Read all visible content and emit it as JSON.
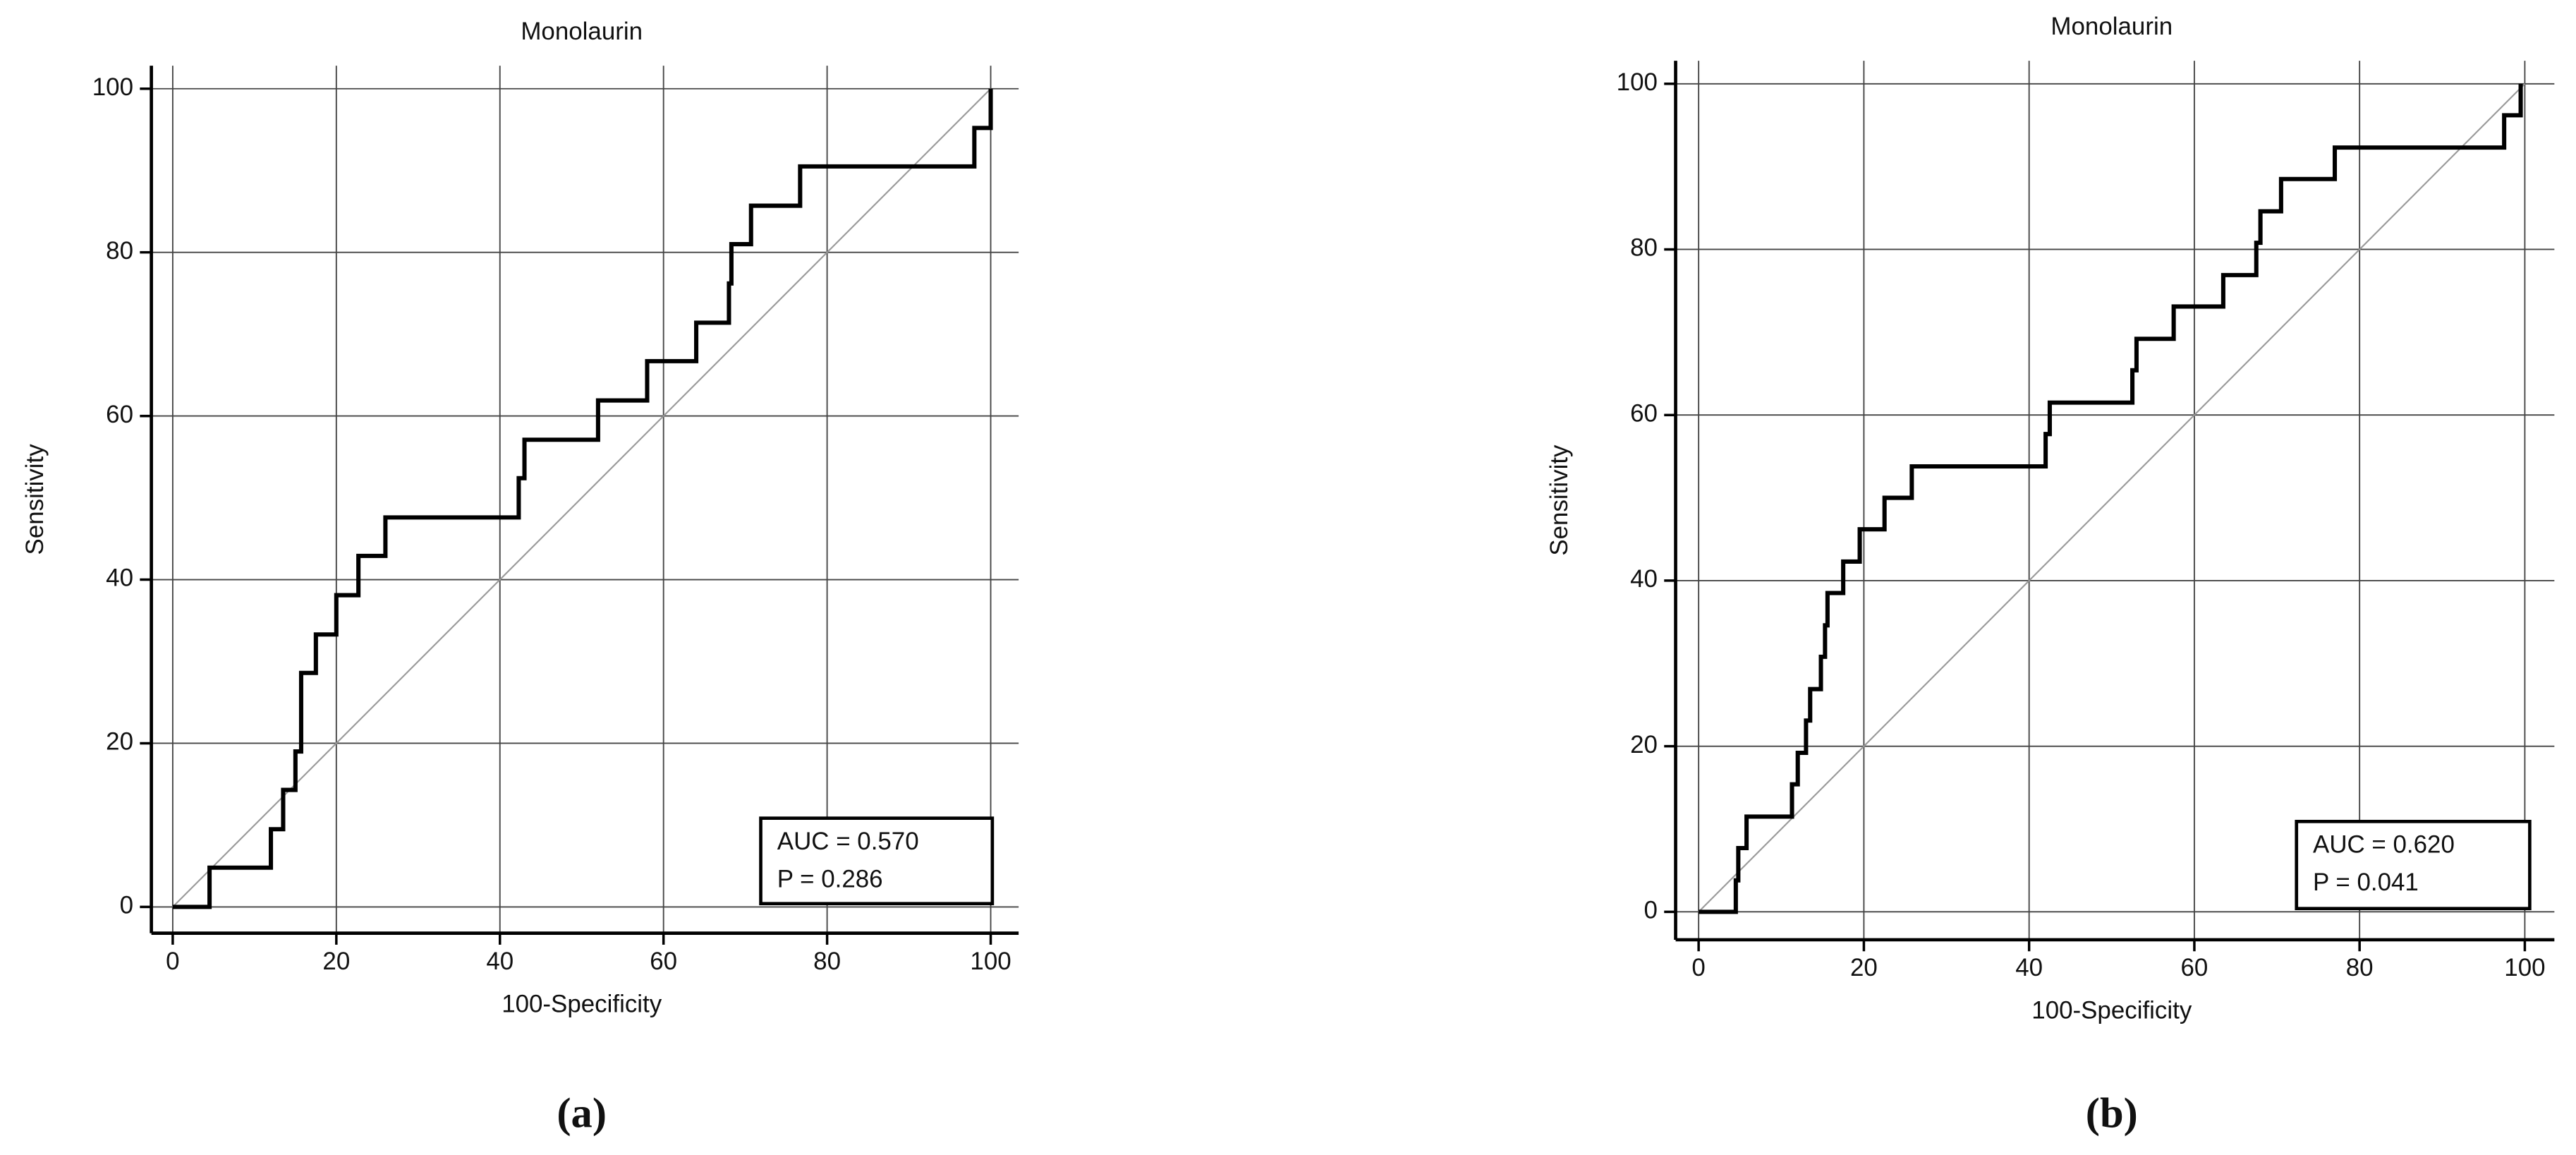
{
  "chart_data": [
    {
      "type": "line",
      "title": "Monolaurin",
      "x_label": "100-Specificity",
      "y_label": "Sensitivity",
      "panel_label": "(a)",
      "annotations": [
        "AUC = 0.570",
        "P = 0.286"
      ],
      "xlim": [
        0,
        100
      ],
      "ylim": [
        0,
        100
      ],
      "xticks": [
        0,
        20,
        40,
        60,
        80,
        100
      ],
      "yticks": [
        0,
        20,
        40,
        60,
        80,
        100
      ],
      "grid": true,
      "series": [
        {
          "color": "#000000",
          "x": [
            0,
            4.5,
            4.5,
            12,
            12,
            13.5,
            13.5,
            15,
            15,
            15.7,
            15.7,
            17.5,
            17.5,
            20,
            20,
            22.7,
            22.7,
            26,
            26,
            42.3,
            42.3,
            43,
            43,
            52,
            52,
            58,
            58,
            64,
            64,
            68,
            68,
            68.3,
            68.3,
            70.7,
            70.7,
            76.7,
            76.7,
            98,
            98,
            100,
            100
          ],
          "values": [
            0,
            0,
            4.8,
            4.8,
            9.5,
            9.5,
            14.3,
            14.3,
            19,
            19,
            28.6,
            28.6,
            33.3,
            33.3,
            38.1,
            38.1,
            42.9,
            42.9,
            47.6,
            47.6,
            52.4,
            52.4,
            57.1,
            57.1,
            61.9,
            61.9,
            66.7,
            66.7,
            71.4,
            71.4,
            76.2,
            76.2,
            81,
            81,
            85.7,
            85.7,
            90.5,
            90.5,
            95.2,
            95.2,
            100
          ]
        },
        {
          "color": "#999999",
          "x": [
            0,
            100
          ],
          "values": [
            0,
            100
          ]
        }
      ]
    },
    {
      "type": "line",
      "title": "Monolaurin",
      "x_label": "100-Specificity",
      "y_label": "Sensitivity",
      "panel_label": "(b)",
      "annotations": [
        "AUC = 0.620",
        "P = 0.041"
      ],
      "xlim": [
        0,
        100
      ],
      "ylim": [
        0,
        100
      ],
      "xticks": [
        0,
        20,
        40,
        60,
        80,
        100
      ],
      "yticks": [
        0,
        20,
        40,
        60,
        80,
        100
      ],
      "grid": true,
      "series": [
        {
          "color": "#000000",
          "x": [
            0,
            4.5,
            4.5,
            4.8,
            4.8,
            5.8,
            5.8,
            11.3,
            11.3,
            12,
            12,
            13,
            13,
            13.5,
            13.5,
            14.8,
            14.8,
            15.3,
            15.3,
            15.6,
            15.6,
            17.5,
            17.5,
            19.5,
            19.5,
            22.5,
            22.5,
            25.8,
            25.8,
            42,
            42,
            42.5,
            42.5,
            52.5,
            52.5,
            53,
            53,
            57.5,
            57.5,
            63.5,
            63.5,
            67.5,
            67.5,
            68,
            68,
            70.5,
            70.5,
            77,
            77,
            97.5,
            97.5,
            99.5,
            99.5
          ],
          "values": [
            0,
            0,
            3.8,
            3.8,
            7.7,
            7.7,
            11.5,
            11.5,
            15.4,
            15.4,
            19.2,
            19.2,
            23.1,
            23.1,
            26.9,
            26.9,
            30.8,
            30.8,
            34.6,
            34.6,
            38.5,
            38.5,
            42.3,
            42.3,
            46.2,
            46.2,
            50,
            50,
            53.8,
            53.8,
            57.7,
            57.7,
            61.5,
            61.5,
            65.4,
            65.4,
            69.2,
            69.2,
            73.1,
            73.1,
            76.9,
            76.9,
            80.8,
            80.8,
            84.6,
            84.6,
            88.5,
            88.5,
            92.3,
            92.3,
            96.2,
            96.2,
            100
          ]
        },
        {
          "color": "#999999",
          "x": [
            0,
            100
          ],
          "values": [
            0,
            100
          ]
        }
      ]
    }
  ]
}
